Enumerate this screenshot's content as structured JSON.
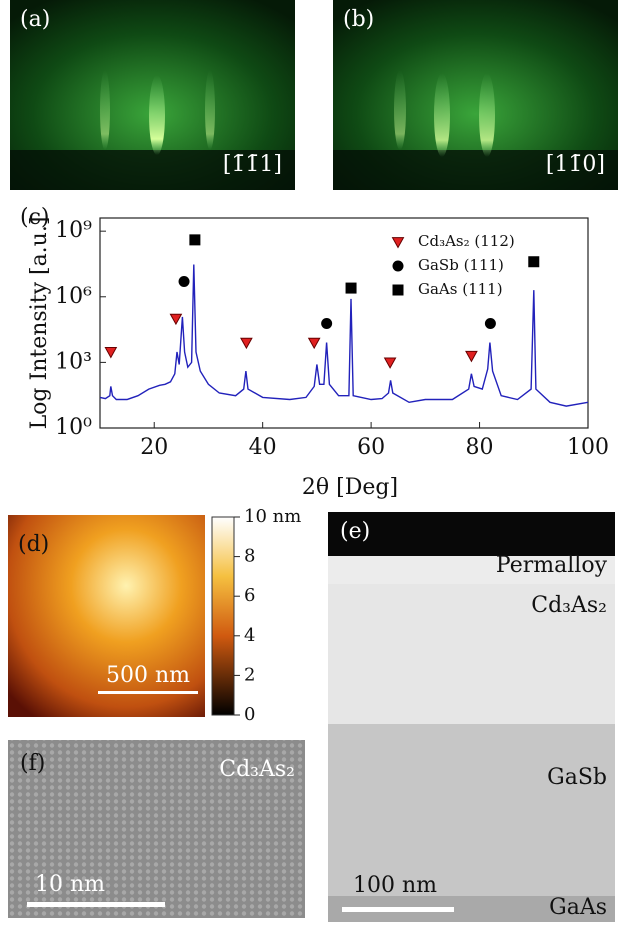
{
  "panels": {
    "a": {
      "label": "(a)",
      "direction": "[1̄1̄1]"
    },
    "b": {
      "label": "(b)",
      "direction": "[11̄0]"
    },
    "d": {
      "label": "(d)",
      "scalebar": "500 nm",
      "colorbar_labels": [
        "10 nm",
        "8",
        "6",
        "4",
        "2",
        "0"
      ]
    },
    "e": {
      "label": "(e)",
      "layers": [
        "Permalloy",
        "Cd₃As₂",
        "GaSb",
        "GaAs"
      ],
      "scalebar": "100 nm"
    },
    "f": {
      "label": "(f)",
      "material": "Cd₃As₂",
      "scalebar": "10 nm"
    }
  },
  "chart_data": {
    "type": "line",
    "label": "(c)",
    "xlabel": "2θ [Deg]",
    "ylabel": "Log Intensity [a.u.]",
    "log_y": true,
    "xlim": [
      10,
      100
    ],
    "xticks": [
      20,
      40,
      60,
      80,
      100
    ],
    "ylim": [
      1,
      4000000000
    ],
    "yticks": [
      {
        "value": 1,
        "label": "10⁰"
      },
      {
        "value": 1000,
        "label": "10³"
      },
      {
        "value": 1000000,
        "label": "10⁶"
      },
      {
        "value": 1000000000,
        "label": "10⁹"
      }
    ],
    "x": [
      10,
      11,
      11.8,
      12,
      12.3,
      13,
      15,
      17,
      19,
      21,
      22,
      23,
      23.8,
      24.2,
      24.6,
      25.2,
      25.6,
      26.2,
      26.9,
      27.3,
      27.7,
      28.5,
      30,
      32,
      35,
      36.5,
      36.9,
      37.3,
      40,
      45,
      48,
      49.5,
      50,
      50.5,
      51.3,
      51.8,
      52.3,
      54,
      55.9,
      56.3,
      56.7,
      60,
      62,
      63.2,
      63.6,
      64,
      67,
      70,
      75,
      78,
      78.5,
      79,
      80.5,
      81.5,
      81.9,
      82.4,
      84,
      87,
      89.5,
      90,
      90.4,
      93,
      96,
      100
    ],
    "series": [
      {
        "color": "#2222bb",
        "values": [
          25,
          22,
          30,
          80,
          30,
          20,
          20,
          30,
          60,
          90,
          100,
          130,
          300,
          3000,
          800,
          120000,
          3000,
          600,
          1000,
          30000000,
          3000,
          400,
          100,
          40,
          30,
          60,
          400,
          60,
          25,
          20,
          25,
          80,
          800,
          100,
          100,
          8000,
          100,
          30,
          30,
          800000,
          30,
          20,
          22,
          40,
          150,
          40,
          15,
          20,
          20,
          60,
          300,
          80,
          60,
          500,
          8000,
          400,
          30,
          20,
          60,
          2000000,
          60,
          15,
          10,
          15
        ]
      }
    ],
    "markers": [
      {
        "name": "Cd₃As₂ (112)",
        "shape": "triangle",
        "color": "#e02020",
        "x": [
          12,
          24,
          37,
          49.5,
          63.5,
          78.5
        ],
        "values": [
          3000,
          100000,
          8000,
          8000,
          1000,
          2000
        ]
      },
      {
        "name": "GaSb (111)",
        "shape": "circle",
        "color": "#000000",
        "x": [
          25.5,
          51.8,
          82
        ],
        "values": [
          5000000,
          60000,
          60000
        ]
      },
      {
        "name": "GaAs (111)",
        "shape": "square",
        "color": "#000000",
        "x": [
          27.5,
          56.3,
          90
        ],
        "values": [
          400000000,
          2500000,
          40000000
        ]
      }
    ]
  }
}
